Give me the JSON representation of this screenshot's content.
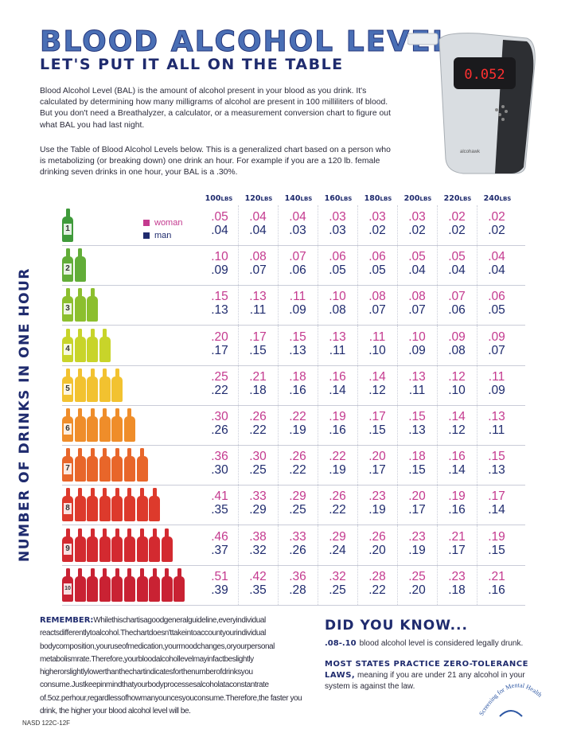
{
  "title": "BLOOD ALCOHOL LEVEL",
  "subtitle": "LET'S PUT IT ALL ON THE TABLE",
  "intro_1": "Blood Alcohol Level (BAL) is the amount of alcohol present in your blood as you drink. It's calculated by determining how many milligrams of alcohol are present in 100 milliliters of blood. But you don't need a Breathalyzer, a calculator, or a measurement conversion chart to figure out what BAL you had last night.",
  "intro_2": "Use the Table of Blood Alcohol Levels below. This is a generalized chart based on a person who is metabolizing (or breaking down) one drink an hour. For example if you are a 120 lb. female drinking seven drinks in one hour, your BAL is a .30%.",
  "device_display": "0.052",
  "device_brand": "alcohawk",
  "side_label": "NUMBER OF DRINKS IN ONE HOUR",
  "legend": {
    "woman": "woman",
    "man": "man"
  },
  "colors": {
    "woman": "#c43a8f",
    "man": "#1f2b6e",
    "accent": "#4a6fb5"
  },
  "weights": [
    {
      "n": "100",
      "u": "LBS"
    },
    {
      "n": "120",
      "u": "LBS"
    },
    {
      "n": "140",
      "u": "LBS"
    },
    {
      "n": "160",
      "u": "LBS"
    },
    {
      "n": "180",
      "u": "LBS"
    },
    {
      "n": "200",
      "u": "LBS"
    },
    {
      "n": "220",
      "u": "LBS"
    },
    {
      "n": "240",
      "u": "LBS"
    }
  ],
  "rows": [
    {
      "drinks": "1",
      "color": "#3f9a3a",
      "woman": [
        ".05",
        ".04",
        ".04",
        ".03",
        ".03",
        ".03",
        ".02",
        ".02"
      ],
      "man": [
        ".04",
        ".04",
        ".03",
        ".03",
        ".02",
        ".02",
        ".02",
        ".02"
      ]
    },
    {
      "drinks": "2",
      "color": "#62ad38",
      "woman": [
        ".10",
        ".08",
        ".07",
        ".06",
        ".06",
        ".05",
        ".05",
        ".04"
      ],
      "man": [
        ".09",
        ".07",
        ".06",
        ".05",
        ".05",
        ".04",
        ".04",
        ".04"
      ]
    },
    {
      "drinks": "3",
      "color": "#8cbf2e",
      "woman": [
        ".15",
        ".13",
        ".11",
        ".10",
        ".08",
        ".08",
        ".07",
        ".06"
      ],
      "man": [
        ".13",
        ".11",
        ".09",
        ".08",
        ".07",
        ".07",
        ".06",
        ".05"
      ]
    },
    {
      "drinks": "4",
      "color": "#c8d42a",
      "woman": [
        ".20",
        ".17",
        ".15",
        ".13",
        ".11",
        ".10",
        ".09",
        ".09"
      ],
      "man": [
        ".17",
        ".15",
        ".13",
        ".11",
        ".10",
        ".09",
        ".08",
        ".07"
      ]
    },
    {
      "drinks": "5",
      "color": "#f2c230",
      "woman": [
        ".25",
        ".21",
        ".18",
        ".16",
        ".14",
        ".13",
        ".12",
        ".11"
      ],
      "man": [
        ".22",
        ".18",
        ".16",
        ".14",
        ".12",
        ".11",
        ".10",
        ".09"
      ]
    },
    {
      "drinks": "6",
      "color": "#ef8d2a",
      "woman": [
        ".30",
        ".26",
        ".22",
        ".19",
        ".17",
        ".15",
        ".14",
        ".13"
      ],
      "man": [
        ".26",
        ".22",
        ".19",
        ".16",
        ".15",
        ".13",
        ".12",
        ".11"
      ]
    },
    {
      "drinks": "7",
      "color": "#e8662a",
      "woman": [
        ".36",
        ".30",
        ".26",
        ".22",
        ".20",
        ".18",
        ".16",
        ".15"
      ],
      "man": [
        ".30",
        ".25",
        ".22",
        ".19",
        ".17",
        ".15",
        ".14",
        ".13"
      ]
    },
    {
      "drinks": "8",
      "color": "#dd3a2c",
      "woman": [
        ".41",
        ".33",
        ".29",
        ".26",
        ".23",
        ".20",
        ".19",
        ".17"
      ],
      "man": [
        ".35",
        ".29",
        ".25",
        ".22",
        ".19",
        ".17",
        ".16",
        ".14"
      ]
    },
    {
      "drinks": "9",
      "color": "#d32a30",
      "woman": [
        ".46",
        ".38",
        ".33",
        ".29",
        ".26",
        ".23",
        ".21",
        ".19"
      ],
      "man": [
        ".37",
        ".32",
        ".26",
        ".24",
        ".20",
        ".19",
        ".17",
        ".15"
      ]
    },
    {
      "drinks": "10",
      "color": "#c92233",
      "woman": [
        ".51",
        ".42",
        ".36",
        ".32",
        ".28",
        ".25",
        ".23",
        ".21"
      ],
      "man": [
        ".39",
        ".35",
        ".28",
        ".25",
        ".22",
        ".20",
        ".18",
        ".16"
      ]
    }
  ],
  "remember_label": "REMEMBER:",
  "remember_text": "Whilethischartisagoodgeneralguideline,everyindividual reactsdifferentlytoalcohol.Thechartdoesn'ttakeintoaccountyourindividual bodycomposition,youruseofmedication,yourmoodchanges,oryourpersonal metabolismrate.Therefore,yourbloodalcohollevelmayinfactbeslightly higherorslightlylowerthanthechartindicatesforthenumberofdrinksyou consume.Justkeepinmindthatyourbodyprocessesalcoholataconstantrate of.5oz.perhour,regardlessofhowmanyouncesyouconsume.Therefore,the faster you drink, the higher your blood alcohol level will be.",
  "dyk_title": "DID YOU KNOW...",
  "fact1_label": ".08-.10",
  "fact1_text": "blood alcohol level is considered legally drunk.",
  "fact2_label": "MOST STATES PRACTICE ZERO-TOLERANCE LAWS,",
  "fact2_text": "meaning if you are under 21 any alcohol in your system is against the law.",
  "logo_text": "Screening for Mental Health",
  "code": "NASD 122C-12F"
}
